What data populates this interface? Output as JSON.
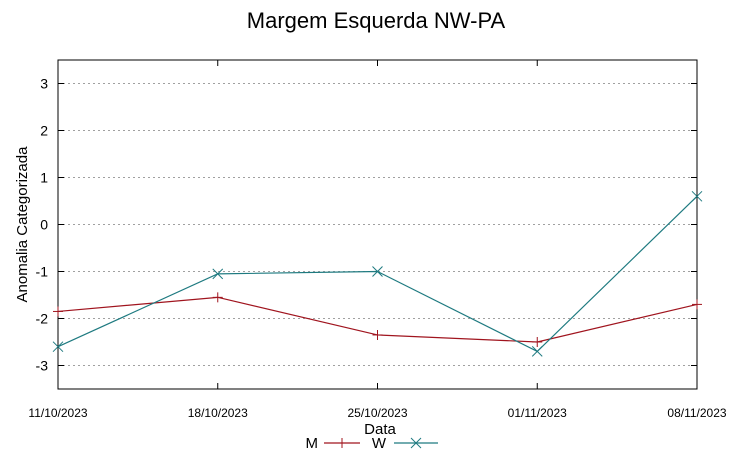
{
  "chart_data": {
    "type": "line",
    "title": "Margem Esquerda NW-PA",
    "xlabel": "Data",
    "ylabel": "Anomalia Categorizada",
    "categories": [
      "11/10/2023",
      "18/10/2023",
      "25/10/2023",
      "01/11/2023",
      "08/11/2023"
    ],
    "yticks": [
      "3",
      "2",
      "1",
      "0",
      "-1",
      "-2",
      "-3"
    ],
    "ylim": [
      -3.5,
      3.5
    ],
    "grid": true,
    "legend_position": "bottom",
    "series": [
      {
        "name": "M",
        "values": [
          -1.85,
          -1.55,
          -2.35,
          -2.5,
          -1.7
        ],
        "color": "#a0141e",
        "marker": "plus"
      },
      {
        "name": "W",
        "values": [
          -2.6,
          -1.05,
          -1.0,
          -2.7,
          0.6
        ],
        "color": "#1e7a80",
        "marker": "cross"
      }
    ]
  }
}
